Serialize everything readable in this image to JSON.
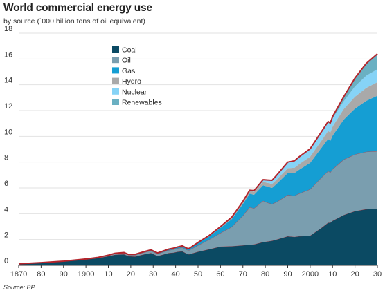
{
  "header": {
    "title": "World commercial energy use",
    "subtitle": "by source (`000 billion tons of oil equivalent)",
    "source": "Source: BP"
  },
  "colors": {
    "coal": "#0b4a63",
    "oil": "#7a9eaf",
    "gas": "#159ed3",
    "hydro": "#a9a9a9",
    "nuclear": "#86d3f6",
    "renewables": "#6ab0c2",
    "outline": "#b3242b",
    "grid": "#e2e2e2"
  },
  "chart_data": {
    "type": "area",
    "stacked": true,
    "title": "World commercial energy use",
    "subtitle": "by source (`000 billion tons of oil equivalent)",
    "ylim": [
      0,
      18
    ],
    "xlim": [
      1870,
      2030
    ],
    "y_ticks": [
      0,
      2,
      4,
      6,
      8,
      10,
      12,
      14,
      16,
      18
    ],
    "x_ticks": [
      1870,
      1880,
      1890,
      1900,
      1910,
      1920,
      1930,
      1940,
      1950,
      1960,
      1970,
      1980,
      1990,
      2000,
      2010,
      2020,
      2030
    ],
    "x_tick_labels": [
      "1870",
      "80",
      "90",
      "1900",
      "10",
      "20",
      "30",
      "40",
      "50",
      "60",
      "70",
      "80",
      "90",
      "2000",
      "10",
      "20",
      "30"
    ],
    "grid": "horizontal",
    "legend_position": "top-left",
    "x": [
      1870,
      1880,
      1890,
      1900,
      1905,
      1910,
      1913,
      1917,
      1919,
      1922,
      1926,
      1929,
      1932,
      1937,
      1939,
      1941,
      1943,
      1945,
      1946,
      1950,
      1955,
      1960,
      1965,
      1970,
      1973,
      1975,
      1979,
      1981,
      1983,
      1985,
      1990,
      1993,
      1995,
      2000,
      2005,
      2008,
      2009,
      2010,
      2015,
      2020,
      2025,
      2030
    ],
    "series": [
      {
        "name": "Coal",
        "key": "coal",
        "values": [
          0.12,
          0.2,
          0.3,
          0.45,
          0.55,
          0.7,
          0.82,
          0.85,
          0.7,
          0.68,
          0.85,
          0.95,
          0.72,
          0.95,
          0.98,
          1.05,
          1.08,
          0.9,
          0.85,
          1.05,
          1.25,
          1.45,
          1.48,
          1.55,
          1.6,
          1.62,
          1.8,
          1.85,
          1.9,
          2.0,
          2.25,
          2.2,
          2.25,
          2.3,
          2.9,
          3.3,
          3.3,
          3.45,
          3.9,
          4.2,
          4.35,
          4.4
        ]
      },
      {
        "name": "Oil",
        "key": "oil",
        "values": [
          0.0,
          0.01,
          0.02,
          0.03,
          0.04,
          0.06,
          0.08,
          0.1,
          0.1,
          0.12,
          0.15,
          0.18,
          0.17,
          0.22,
          0.25,
          0.27,
          0.3,
          0.3,
          0.32,
          0.5,
          0.75,
          1.05,
          1.5,
          2.3,
          2.9,
          2.8,
          3.2,
          3.0,
          2.85,
          2.9,
          3.2,
          3.2,
          3.3,
          3.6,
          3.9,
          4.0,
          3.9,
          4.0,
          4.3,
          4.4,
          4.45,
          4.45
        ]
      },
      {
        "name": "Gas",
        "key": "gas",
        "values": [
          0.0,
          0.0,
          0.0,
          0.01,
          0.01,
          0.02,
          0.02,
          0.03,
          0.03,
          0.03,
          0.04,
          0.05,
          0.05,
          0.06,
          0.07,
          0.08,
          0.09,
          0.09,
          0.09,
          0.17,
          0.25,
          0.4,
          0.6,
          0.9,
          1.05,
          1.05,
          1.2,
          1.25,
          1.25,
          1.4,
          1.7,
          1.75,
          1.85,
          2.05,
          2.3,
          2.5,
          2.45,
          2.6,
          3.1,
          3.55,
          3.95,
          4.3
        ]
      },
      {
        "name": "Hydro",
        "key": "hydro",
        "values": [
          0.0,
          0.0,
          0.0,
          0.0,
          0.0,
          0.01,
          0.01,
          0.01,
          0.01,
          0.02,
          0.02,
          0.02,
          0.02,
          0.03,
          0.03,
          0.03,
          0.04,
          0.04,
          0.04,
          0.05,
          0.07,
          0.1,
          0.14,
          0.19,
          0.22,
          0.24,
          0.27,
          0.29,
          0.3,
          0.32,
          0.38,
          0.41,
          0.43,
          0.47,
          0.56,
          0.62,
          0.65,
          0.7,
          0.82,
          0.92,
          1.0,
          1.05
        ]
      },
      {
        "name": "Nuclear",
        "key": "nuclear",
        "values": [
          0.0,
          0.0,
          0.0,
          0.0,
          0.0,
          0.0,
          0.0,
          0.0,
          0.0,
          0.0,
          0.0,
          0.0,
          0.0,
          0.0,
          0.0,
          0.0,
          0.0,
          0.0,
          0.0,
          0.0,
          0.0,
          0.0,
          0.01,
          0.02,
          0.05,
          0.08,
          0.17,
          0.22,
          0.28,
          0.34,
          0.45,
          0.52,
          0.54,
          0.58,
          0.63,
          0.63,
          0.61,
          0.63,
          0.6,
          0.8,
          0.95,
          1.0
        ]
      },
      {
        "name": "Renewables",
        "key": "renewables",
        "values": [
          0.0,
          0.0,
          0.0,
          0.0,
          0.0,
          0.0,
          0.0,
          0.0,
          0.0,
          0.0,
          0.0,
          0.0,
          0.0,
          0.0,
          0.0,
          0.0,
          0.0,
          0.0,
          0.0,
          0.0,
          0.0,
          0.0,
          0.0,
          0.0,
          0.0,
          0.0,
          0.0,
          0.0,
          0.01,
          0.01,
          0.02,
          0.02,
          0.03,
          0.04,
          0.06,
          0.1,
          0.12,
          0.15,
          0.35,
          0.65,
          0.95,
          1.2
        ]
      }
    ]
  }
}
